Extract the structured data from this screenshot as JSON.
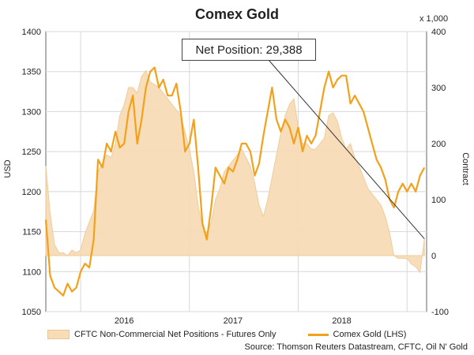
{
  "chart_data": {
    "type": "line",
    "title": "Comex Gold",
    "ylabel_left": "USD",
    "ylabel_right": "Contract",
    "unit_right": "x 1,000",
    "ylim_left": [
      1050,
      1400
    ],
    "ylim_right": [
      -100,
      400
    ],
    "yticks_left": [
      "1400",
      "1350",
      "1300",
      "1250",
      "1200",
      "1150",
      "1100",
      "1050"
    ],
    "yticks_right": [
      "400",
      "300",
      "200",
      "100",
      "0",
      "-100"
    ],
    "xticks": [
      "2016",
      "2017",
      "2018"
    ],
    "annotation": "Net Position: 29,388",
    "legend": {
      "position": "bottom",
      "area_label": "CFTC Non-Commercial Net Positions - Futures Only",
      "line_label": "Comex Gold (LHS)"
    },
    "source": "Source: Thomson Reuters Datastream, CFTC, Oil N' Gold",
    "grid": true,
    "series": [
      {
        "axis": "right",
        "kind": "area",
        "x": [
          2015.0,
          2015.04,
          2015.08,
          2015.12,
          2015.16,
          2015.2,
          2015.24,
          2015.28,
          2015.32,
          2015.36,
          2015.4,
          2015.44,
          2015.48,
          2015.52,
          2015.56,
          2015.6,
          2015.64,
          2015.68,
          2015.72,
          2015.76,
          2015.8,
          2015.84,
          2015.88,
          2015.92,
          2015.96,
          2016.0,
          2016.04,
          2016.08,
          2016.12,
          2016.16,
          2016.2,
          2016.24,
          2016.28,
          2016.32,
          2016.36,
          2016.4,
          2016.44,
          2016.48,
          2016.52,
          2016.56,
          2016.6,
          2016.64,
          2016.68,
          2016.72,
          2016.76,
          2016.8,
          2016.84,
          2016.88,
          2016.92,
          2016.96,
          2017.0,
          2017.04,
          2017.08,
          2017.12,
          2017.16,
          2017.2,
          2017.24,
          2017.28,
          2017.32,
          2017.36,
          2017.4,
          2017.44,
          2017.48,
          2017.52,
          2017.56,
          2017.6,
          2017.64,
          2017.68,
          2017.72,
          2017.76,
          2017.8,
          2017.84,
          2017.88,
          2017.92,
          2017.96,
          2018.0,
          2018.04,
          2018.08,
          2018.12,
          2018.16,
          2018.2,
          2018.24,
          2018.28,
          2018.32,
          2018.36,
          2018.4,
          2018.44,
          2018.48
        ],
        "values": [
          160,
          75,
          20,
          5,
          5,
          0,
          10,
          5,
          10,
          40,
          60,
          80,
          150,
          165,
          180,
          175,
          200,
          250,
          270,
          300,
          300,
          290,
          320,
          330,
          310,
          305,
          300,
          290,
          280,
          270,
          260,
          250,
          220,
          190,
          150,
          90,
          50,
          40,
          60,
          100,
          120,
          150,
          160,
          170,
          180,
          190,
          175,
          160,
          130,
          90,
          70,
          100,
          140,
          180,
          220,
          250,
          270,
          280,
          230,
          200,
          200,
          190,
          190,
          200,
          210,
          250,
          255,
          240,
          210,
          190,
          200,
          175,
          160,
          140,
          120,
          110,
          100,
          90,
          70,
          40,
          0,
          -5,
          -5,
          -5,
          -15,
          -20,
          -30,
          30
        ]
      },
      {
        "axis": "left",
        "kind": "line",
        "x": [
          2015.0,
          2015.04,
          2015.08,
          2015.12,
          2015.16,
          2015.2,
          2015.24,
          2015.28,
          2015.32,
          2015.36,
          2015.4,
          2015.44,
          2015.48,
          2015.52,
          2015.56,
          2015.6,
          2015.64,
          2015.68,
          2015.72,
          2015.76,
          2015.8,
          2015.84,
          2015.88,
          2015.92,
          2015.96,
          2016.0,
          2016.04,
          2016.08,
          2016.12,
          2016.16,
          2016.2,
          2016.24,
          2016.28,
          2016.32,
          2016.36,
          2016.4,
          2016.44,
          2016.48,
          2016.52,
          2016.56,
          2016.6,
          2016.64,
          2016.68,
          2016.72,
          2016.76,
          2016.8,
          2016.84,
          2016.88,
          2016.92,
          2016.96,
          2017.0,
          2017.04,
          2017.08,
          2017.12,
          2017.16,
          2017.2,
          2017.24,
          2017.28,
          2017.32,
          2017.36,
          2017.4,
          2017.44,
          2017.48,
          2017.52,
          2017.56,
          2017.6,
          2017.64,
          2017.68,
          2017.72,
          2017.76,
          2017.8,
          2017.84,
          2017.88,
          2017.92,
          2017.96,
          2018.0,
          2018.04,
          2018.08,
          2018.12,
          2018.16,
          2018.2,
          2018.24,
          2018.28,
          2018.32,
          2018.36,
          2018.4,
          2018.44,
          2018.48
        ],
        "values": [
          1165,
          1095,
          1080,
          1075,
          1070,
          1085,
          1075,
          1080,
          1100,
          1110,
          1105,
          1140,
          1240,
          1230,
          1260,
          1250,
          1275,
          1255,
          1260,
          1300,
          1320,
          1260,
          1290,
          1330,
          1350,
          1355,
          1330,
          1340,
          1320,
          1320,
          1335,
          1300,
          1250,
          1260,
          1290,
          1230,
          1160,
          1140,
          1180,
          1230,
          1220,
          1210,
          1230,
          1225,
          1240,
          1260,
          1260,
          1250,
          1220,
          1235,
          1270,
          1300,
          1330,
          1290,
          1275,
          1290,
          1280,
          1260,
          1280,
          1250,
          1270,
          1260,
          1270,
          1300,
          1330,
          1350,
          1330,
          1340,
          1345,
          1345,
          1310,
          1320,
          1310,
          1300,
          1280,
          1260,
          1240,
          1230,
          1215,
          1190,
          1180,
          1200,
          1210,
          1200,
          1210,
          1200,
          1220,
          1230
        ]
      }
    ]
  }
}
